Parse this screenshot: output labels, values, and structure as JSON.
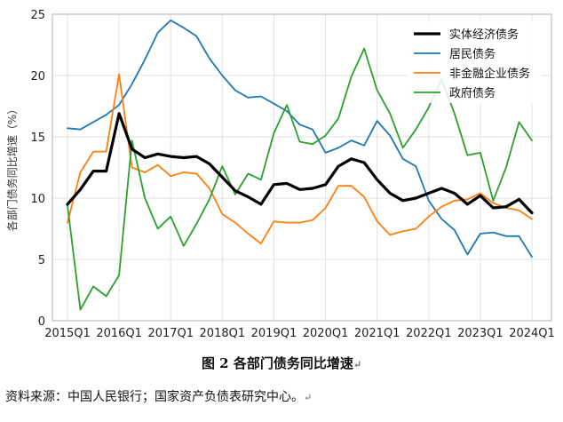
{
  "caption": "图 2 各部门债务同比增速",
  "caption_mark": "↵",
  "source": "资料来源：中国人民银行；国家资产负债表研究中心。",
  "source_mark": "↵",
  "chart_data": {
    "type": "line",
    "ylabel": "各部门债务同比增速（%）",
    "ylim": [
      0,
      25
    ],
    "yticks": [
      0,
      5,
      10,
      15,
      20,
      25
    ],
    "xticks": [
      "2015Q1",
      "2016Q1",
      "2017Q1",
      "2018Q1",
      "2019Q1",
      "2020Q1",
      "2021Q1",
      "2022Q1",
      "2023Q1",
      "2024Q1"
    ],
    "x": [
      "2015Q1",
      "2015Q2",
      "2015Q3",
      "2015Q4",
      "2016Q1",
      "2016Q2",
      "2016Q3",
      "2016Q4",
      "2017Q1",
      "2017Q2",
      "2017Q3",
      "2017Q4",
      "2018Q1",
      "2018Q2",
      "2018Q3",
      "2018Q4",
      "2019Q1",
      "2019Q2",
      "2019Q3",
      "2019Q4",
      "2020Q1",
      "2020Q2",
      "2020Q3",
      "2020Q4",
      "2021Q1",
      "2021Q2",
      "2021Q3",
      "2021Q4",
      "2022Q1",
      "2022Q2",
      "2022Q3",
      "2022Q4",
      "2023Q1",
      "2023Q2",
      "2023Q3",
      "2023Q4",
      "2024Q1"
    ],
    "grid": true,
    "legend_position": "top-right",
    "series": [
      {
        "name": "实体经济债务",
        "color": "#000000",
        "width": 3.2,
        "values": [
          9.5,
          10.7,
          12.2,
          12.2,
          16.9,
          14.0,
          13.3,
          13.6,
          13.4,
          13.3,
          13.4,
          12.8,
          11.7,
          10.6,
          10.1,
          9.5,
          11.1,
          11.2,
          10.7,
          10.8,
          11.1,
          12.6,
          13.2,
          12.9,
          11.5,
          10.4,
          9.8,
          10.0,
          10.4,
          10.8,
          10.4,
          9.5,
          10.2,
          9.2,
          9.3,
          9.9,
          8.8
        ]
      },
      {
        "name": "居民债务",
        "color": "#1f77b4",
        "width": 1.8,
        "values": [
          15.7,
          15.6,
          16.2,
          16.8,
          17.6,
          19.3,
          21.3,
          23.5,
          24.5,
          23.9,
          23.2,
          21.4,
          20.0,
          18.8,
          18.2,
          18.3,
          17.7,
          17.1,
          16.0,
          15.6,
          13.7,
          14.1,
          14.7,
          14.3,
          16.3,
          15.1,
          13.2,
          12.6,
          9.8,
          8.3,
          7.4,
          5.4,
          7.1,
          7.2,
          6.9,
          6.9,
          5.2
        ]
      },
      {
        "name": "非金融企业债务",
        "color": "#ff7f0e",
        "width": 1.8,
        "values": [
          8.0,
          12.1,
          13.8,
          13.8,
          20.1,
          12.5,
          12.1,
          12.7,
          11.8,
          12.1,
          12.0,
          10.8,
          8.7,
          8.0,
          7.1,
          6.3,
          8.1,
          8.0,
          8.0,
          8.2,
          9.2,
          11.0,
          11.0,
          10.1,
          8.1,
          7.0,
          7.3,
          7.5,
          8.5,
          9.3,
          9.8,
          9.9,
          10.4,
          9.6,
          9.2,
          9.0,
          8.3
        ]
      },
      {
        "name": "政府债务",
        "color": "#2ca02c",
        "width": 1.8,
        "values": [
          9.4,
          0.9,
          2.8,
          2.0,
          3.7,
          14.7,
          10.0,
          7.5,
          8.5,
          6.1,
          7.9,
          9.9,
          12.6,
          10.3,
          12.0,
          11.5,
          15.3,
          17.6,
          14.6,
          14.4,
          15.1,
          16.5,
          19.9,
          22.2,
          18.8,
          16.9,
          14.1,
          15.6,
          17.4,
          19.7,
          16.9,
          13.5,
          13.7,
          9.8,
          12.5,
          16.2,
          14.7
        ]
      }
    ]
  }
}
